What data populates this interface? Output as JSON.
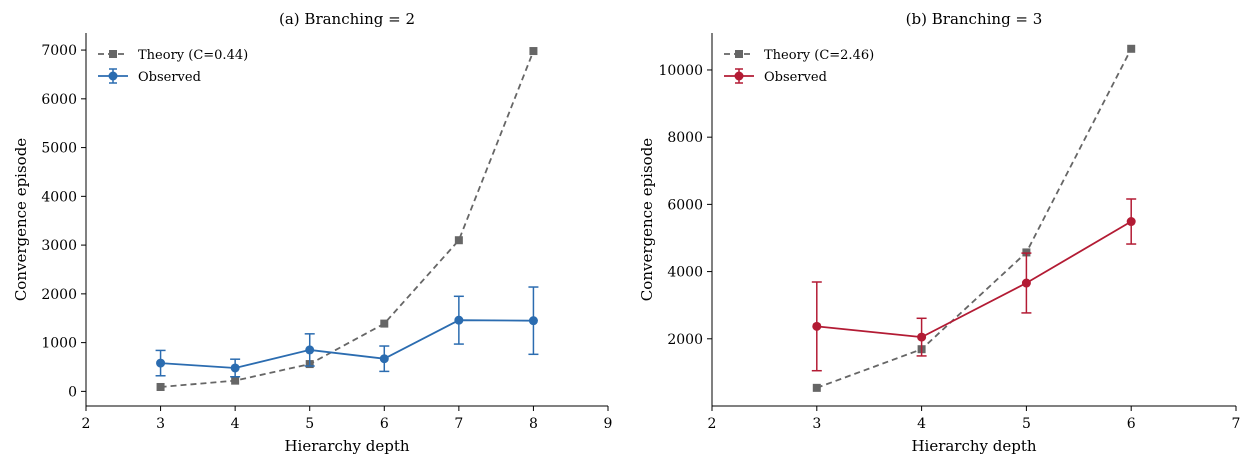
{
  "chart_data": [
    {
      "type": "line",
      "title": "(a) Branching = 2",
      "xlabel": "Hierarchy depth",
      "ylabel": "Convergence episode",
      "xlim": [
        2,
        9
      ],
      "ylim": [
        -300,
        7350
      ],
      "xticks": [
        2,
        3,
        4,
        5,
        6,
        7,
        8,
        9
      ],
      "yticks": [
        0,
        1000,
        2000,
        3000,
        4000,
        5000,
        6000,
        7000
      ],
      "grid": false,
      "legend_position": "top-left",
      "series": [
        {
          "name": "Theory (C=0.44)",
          "color": "#666666",
          "style": "dashed",
          "marker": "square",
          "x": [
            3,
            4,
            5,
            6,
            7,
            8
          ],
          "y": [
            90,
            220,
            560,
            1390,
            3100,
            6980
          ]
        },
        {
          "name": "Observed",
          "color": "#2b6cb0",
          "style": "solid",
          "marker": "circle",
          "x": [
            3,
            4,
            5,
            6,
            7,
            8
          ],
          "y": [
            580,
            480,
            850,
            670,
            1460,
            1450
          ],
          "yerr": [
            260,
            180,
            330,
            260,
            490,
            690
          ]
        }
      ]
    },
    {
      "type": "line",
      "title": "(b) Branching = 3",
      "xlabel": "Hierarchy depth",
      "ylabel": "Convergence episode",
      "xlim": [
        2,
        7
      ],
      "ylim": [
        0,
        11100
      ],
      "xticks": [
        2,
        3,
        4,
        5,
        6,
        7
      ],
      "yticks": [
        2000,
        4000,
        6000,
        8000,
        10000
      ],
      "grid": false,
      "legend_position": "top-left",
      "series": [
        {
          "name": "Theory (C=2.46)",
          "color": "#666666",
          "style": "dashed",
          "marker": "square",
          "x": [
            3,
            4,
            5,
            6
          ],
          "y": [
            540,
            1690,
            4570,
            10630
          ]
        },
        {
          "name": "Observed",
          "color": "#b31b34",
          "style": "solid",
          "marker": "circle",
          "x": [
            3,
            4,
            5,
            6
          ],
          "y": [
            2370,
            2050,
            3660,
            5490
          ],
          "yerr": [
            1320,
            560,
            890,
            670
          ]
        }
      ]
    }
  ]
}
